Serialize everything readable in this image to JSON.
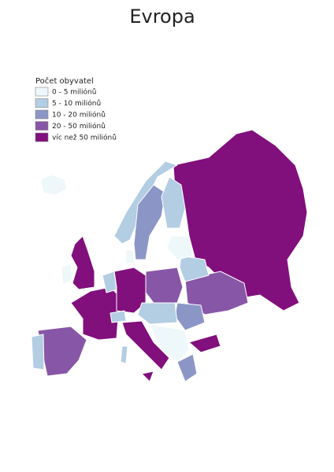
{
  "title": "Evropa",
  "legend": {
    "title": "Počet obyvatel",
    "items": [
      {
        "label": "0 - 5 miliónů",
        "color": "#eef7fa"
      },
      {
        "label": "5 - 10 miliónů",
        "color": "#b3cde3"
      },
      {
        "label": "10 - 20 miliónů",
        "color": "#8c96c6"
      },
      {
        "label": "20 - 50 miliónů",
        "color": "#8856a7"
      },
      {
        "label": "víc než 50 miliónů",
        "color": "#810f7c"
      }
    ]
  }
}
